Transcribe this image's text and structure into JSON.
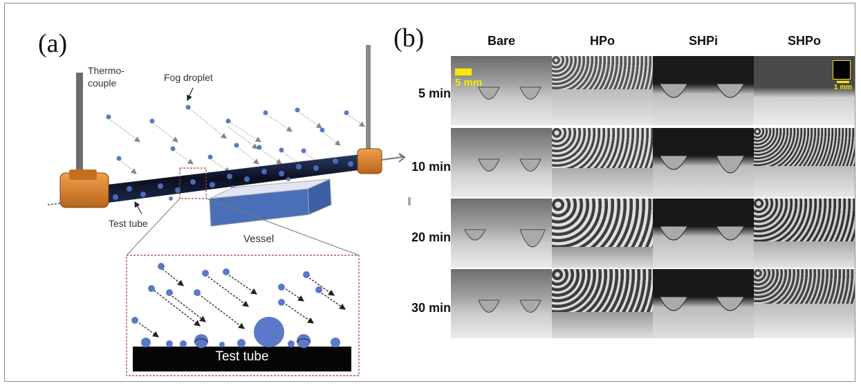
{
  "panel_a": {
    "label": "(a)",
    "thermocouple_label": "Thermo-\ncouple",
    "fog_droplet_label": "Fog droplet",
    "test_tube_label": "Test tube",
    "vessel_label": "Vessel",
    "inset_tube_label": "Test tube"
  },
  "panel_b": {
    "label": "(b)",
    "columns": [
      "Bare",
      "HPo",
      "SHPi",
      "SHPo"
    ],
    "rows": [
      "5 min",
      "10 min",
      "20 min",
      "30 min"
    ],
    "scalebar_left": "5 mm",
    "scalebar_right": "1 mm"
  },
  "colors": {
    "droplet": "#5b78c9",
    "tube": "#111111",
    "orange_fitting": "#d9822b",
    "vessel_water": "#4a6fb8",
    "scalebar": "#ffe800",
    "inset_border": "#a23c3c"
  }
}
